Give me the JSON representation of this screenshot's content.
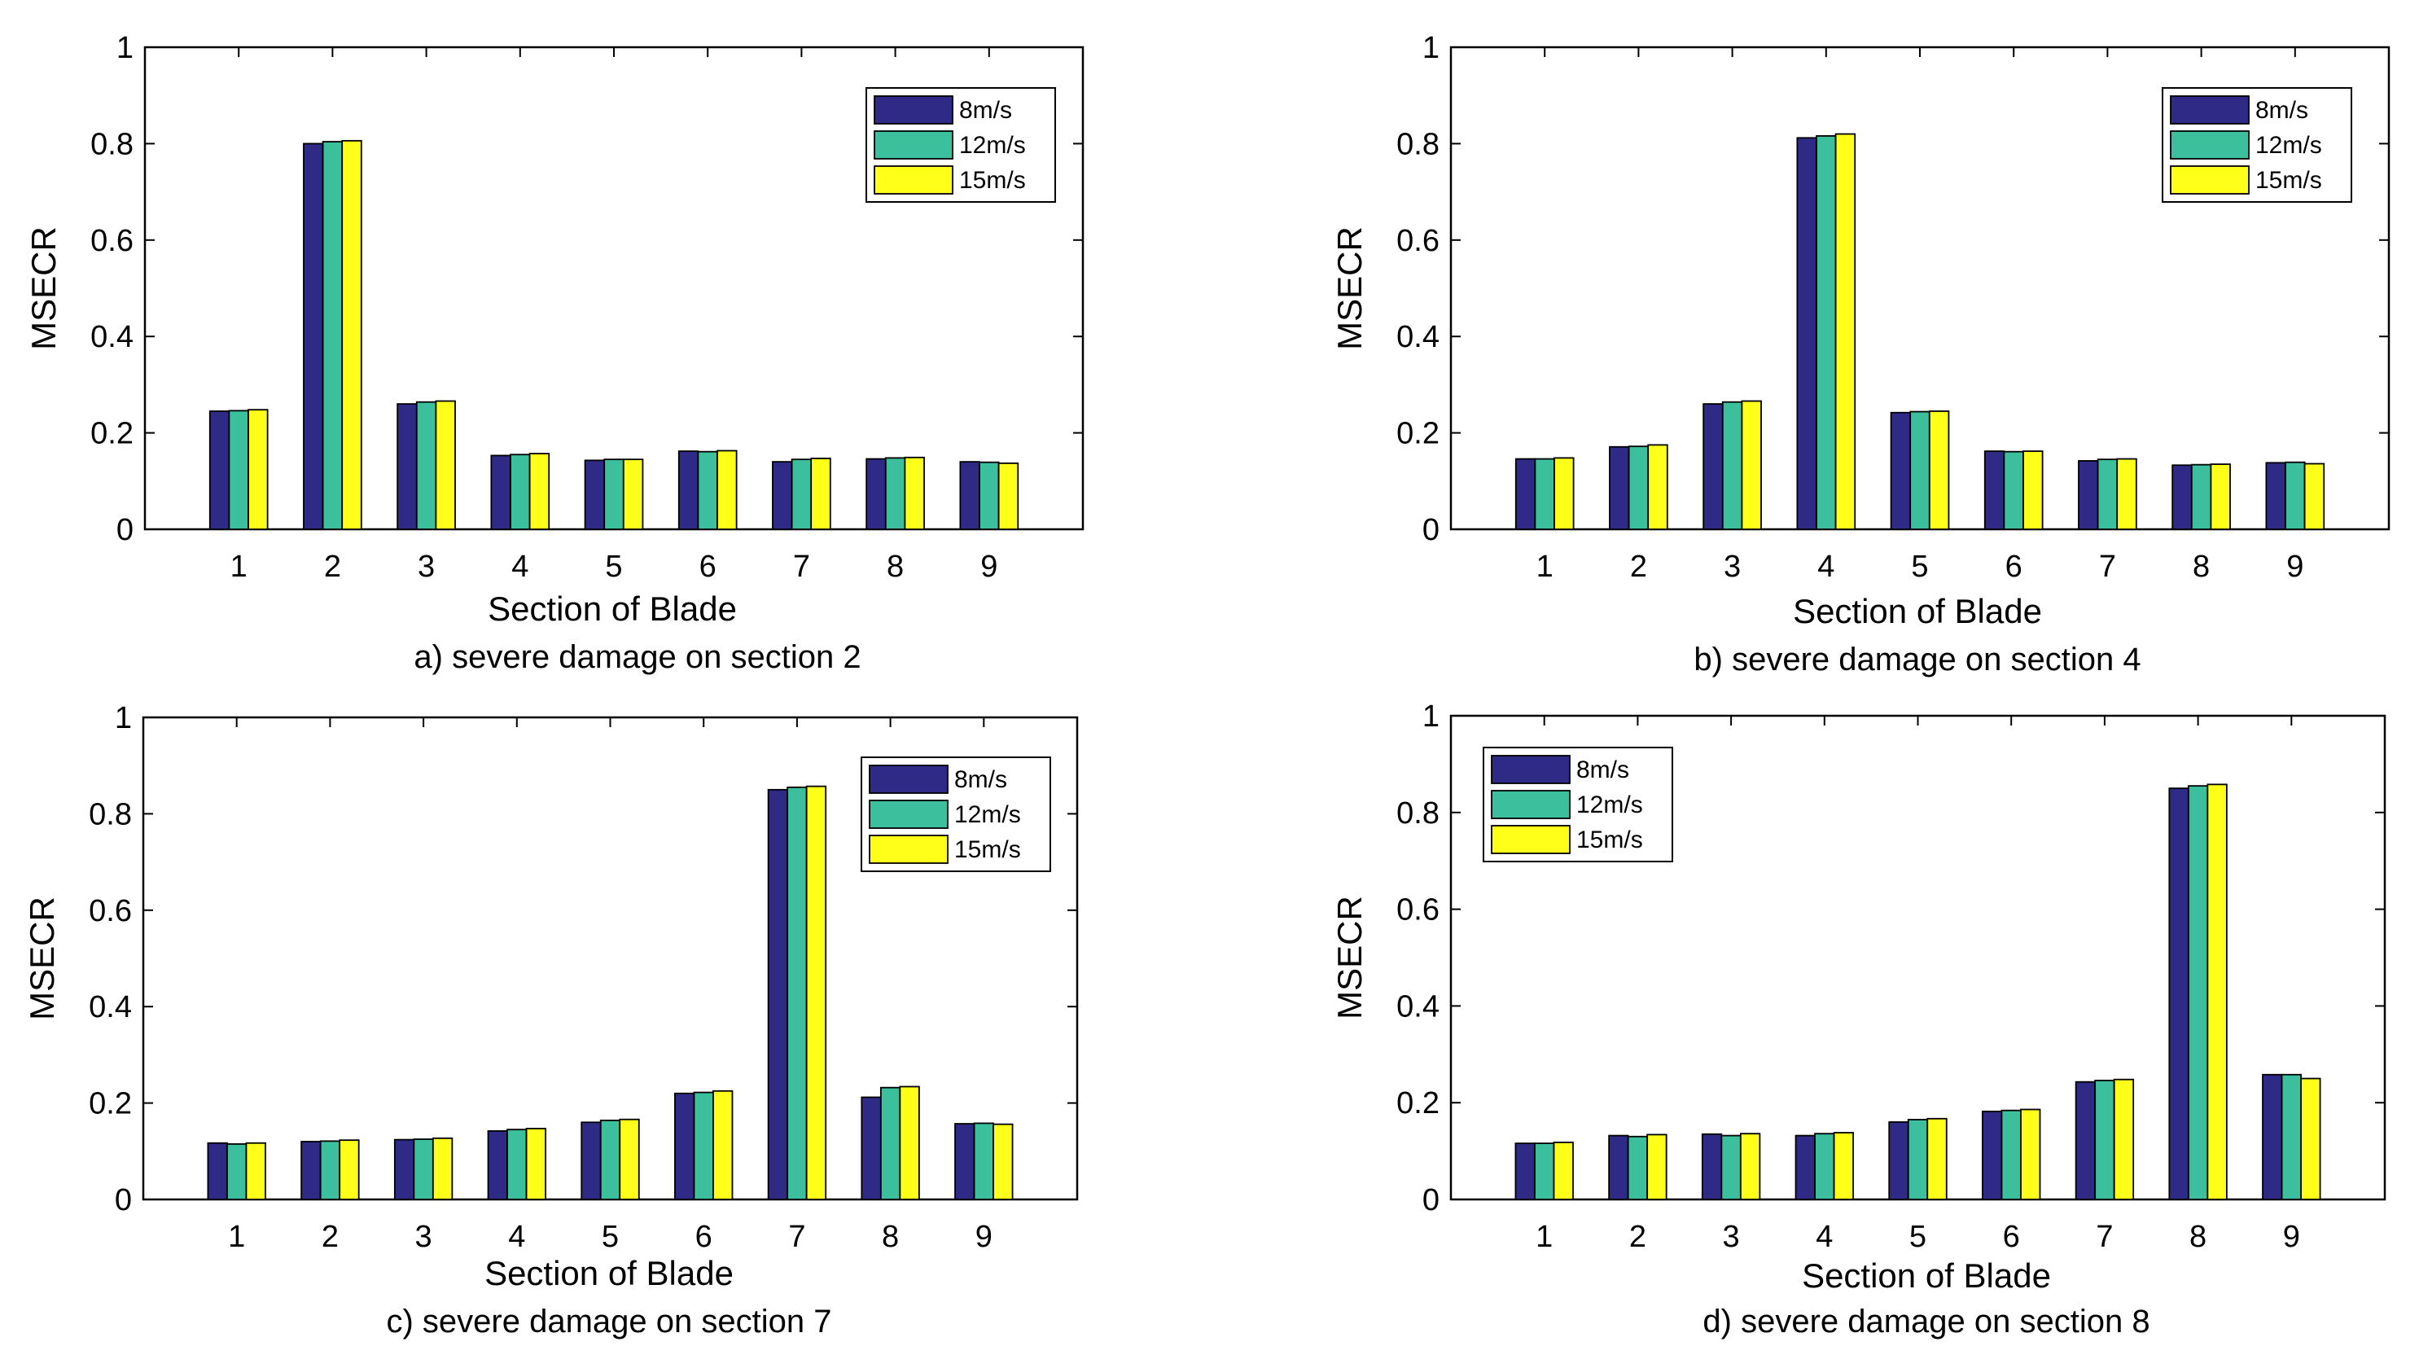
{
  "colors": {
    "series": [
      "#2e2a86",
      "#3bbf9d",
      "#ffff1a"
    ],
    "axis": "#000000",
    "background": "#ffffff"
  },
  "chart_data": [
    {
      "type": "bar",
      "caption": "a) severe damage on section 2",
      "xlabel": "Section of Blade",
      "ylabel": "MSECR",
      "categories": [
        "1",
        "2",
        "3",
        "4",
        "5",
        "6",
        "7",
        "8",
        "9"
      ],
      "yticks": [
        "0",
        "0.2",
        "0.4",
        "0.6",
        "0.8",
        "1"
      ],
      "ylim": [
        0,
        1
      ],
      "legend_position": "top-right",
      "series": [
        {
          "name": "8m/s",
          "values": [
            0.245,
            0.8,
            0.26,
            0.153,
            0.143,
            0.162,
            0.14,
            0.146,
            0.14
          ]
        },
        {
          "name": "12m/s",
          "values": [
            0.246,
            0.804,
            0.264,
            0.155,
            0.145,
            0.161,
            0.145,
            0.148,
            0.139
          ]
        },
        {
          "name": "15m/s",
          "values": [
            0.248,
            0.806,
            0.266,
            0.157,
            0.145,
            0.163,
            0.147,
            0.149,
            0.137
          ]
        }
      ]
    },
    {
      "type": "bar",
      "caption": "b) severe damage on section 4",
      "xlabel": "Section of Blade",
      "ylabel": "MSECR",
      "categories": [
        "1",
        "2",
        "3",
        "4",
        "5",
        "6",
        "7",
        "8",
        "9"
      ],
      "yticks": [
        "0",
        "0.2",
        "0.4",
        "0.6",
        "0.8",
        "1"
      ],
      "ylim": [
        0,
        1
      ],
      "legend_position": "top-right",
      "series": [
        {
          "name": "8m/s",
          "values": [
            0.146,
            0.171,
            0.26,
            0.812,
            0.242,
            0.162,
            0.142,
            0.133,
            0.138
          ]
        },
        {
          "name": "12m/s",
          "values": [
            0.146,
            0.172,
            0.264,
            0.816,
            0.244,
            0.161,
            0.145,
            0.134,
            0.139
          ]
        },
        {
          "name": "15m/s",
          "values": [
            0.148,
            0.175,
            0.266,
            0.82,
            0.245,
            0.162,
            0.146,
            0.135,
            0.136
          ]
        }
      ]
    },
    {
      "type": "bar",
      "caption": "c) severe damage on section 7",
      "xlabel": "Section of Blade",
      "ylabel": "MSECR",
      "categories": [
        "1",
        "2",
        "3",
        "4",
        "5",
        "6",
        "7",
        "8",
        "9"
      ],
      "yticks": [
        "0",
        "0.2",
        "0.4",
        "0.6",
        "0.8",
        "1"
      ],
      "ylim": [
        0,
        1
      ],
      "legend_position": "top-right",
      "series": [
        {
          "name": "8m/s",
          "values": [
            0.117,
            0.12,
            0.124,
            0.142,
            0.16,
            0.22,
            0.85,
            0.212,
            0.157
          ]
        },
        {
          "name": "12m/s",
          "values": [
            0.115,
            0.121,
            0.125,
            0.145,
            0.164,
            0.222,
            0.855,
            0.232,
            0.158
          ]
        },
        {
          "name": "15m/s",
          "values": [
            0.117,
            0.123,
            0.127,
            0.147,
            0.166,
            0.225,
            0.857,
            0.234,
            0.156
          ]
        }
      ]
    },
    {
      "type": "bar",
      "caption": "d) severe damage on section 8",
      "xlabel": "Section of Blade",
      "ylabel": "MSECR",
      "categories": [
        "1",
        "2",
        "3",
        "4",
        "5",
        "6",
        "7",
        "8",
        "9"
      ],
      "yticks": [
        "0",
        "0.2",
        "0.4",
        "0.6",
        "0.8",
        "1"
      ],
      "ylim": [
        0,
        1
      ],
      "legend_position": "top-left",
      "series": [
        {
          "name": "8m/s",
          "values": [
            0.116,
            0.132,
            0.135,
            0.132,
            0.16,
            0.182,
            0.243,
            0.85,
            0.258
          ]
        },
        {
          "name": "12m/s",
          "values": [
            0.116,
            0.13,
            0.132,
            0.136,
            0.165,
            0.184,
            0.246,
            0.855,
            0.258
          ]
        },
        {
          "name": "15m/s",
          "values": [
            0.118,
            0.134,
            0.136,
            0.138,
            0.167,
            0.186,
            0.248,
            0.858,
            0.25
          ]
        }
      ]
    }
  ]
}
